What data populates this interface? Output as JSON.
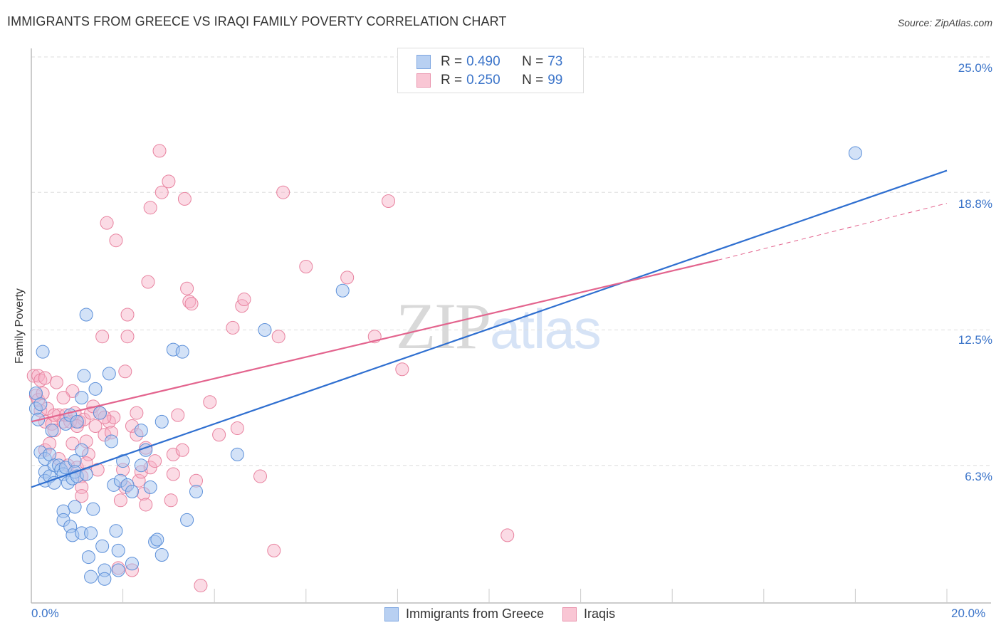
{
  "header": {
    "title": "IMMIGRANTS FROM GREECE VS IRAQI FAMILY POVERTY CORRELATION CHART",
    "source": "Source: ZipAtlas.com"
  },
  "watermark": {
    "zip": "ZIP",
    "atlas": "atlas"
  },
  "legend": {
    "rows": [
      {
        "r_label": "R =",
        "r_value": "0.490",
        "n_label": "N =",
        "n_value": "73",
        "fill": "#b8d0f2",
        "stroke": "#7ea6e0"
      },
      {
        "r_label": "R =",
        "r_value": "0.250",
        "n_label": "N =",
        "n_value": "99",
        "fill": "#f9c6d4",
        "stroke": "#e994ad"
      }
    ]
  },
  "axes": {
    "x_min_label": "0.0%",
    "x_max_label": "20.0%",
    "y_label": "Family Poverty",
    "y_ticks": [
      {
        "label": "25.0%",
        "value": 25.0
      },
      {
        "label": "18.8%",
        "value": 18.8
      },
      {
        "label": "12.5%",
        "value": 12.5
      },
      {
        "label": "6.3%",
        "value": 6.3
      }
    ]
  },
  "bottom_legend": [
    {
      "label": "Immigrants from Greece",
      "fill": "#b8d0f2",
      "stroke": "#7ea6e0"
    },
    {
      "label": "Iraqis",
      "fill": "#f9c6d4",
      "stroke": "#e994ad"
    }
  ],
  "colors": {
    "blue_line": "#2f6fd0",
    "pink_line": "#e3648e",
    "blue_fill": "rgba(168,198,240,0.5)",
    "blue_stroke": "#5b8fd9",
    "pink_fill": "rgba(246,176,198,0.45)",
    "pink_stroke": "#e8829f",
    "grid": "#dddddd",
    "axis": "#bbbbbb",
    "tick_text": "#3b74c9"
  },
  "chart_data": {
    "type": "scatter",
    "title": "IMMIGRANTS FROM GREECE VS IRAQI FAMILY POVERTY CORRELATION CHART",
    "xlabel": "",
    "ylabel": "Family Poverty",
    "xlim": [
      0,
      20
    ],
    "ylim": [
      0,
      25.5
    ],
    "x_tick_labels": [
      "0.0%",
      "20.0%"
    ],
    "y_tick_labels": [
      "6.3%",
      "12.5%",
      "18.8%",
      "25.0%"
    ],
    "grid": true,
    "legend_position": "top-center",
    "series": [
      {
        "name": "Immigrants from Greece",
        "R": 0.49,
        "N": 73,
        "trend": {
          "x0": 0,
          "y0": 5.3,
          "x1": 20,
          "y1": 19.8,
          "style": "solid"
        },
        "points": [
          [
            0.1,
            9.6
          ],
          [
            0.1,
            8.9
          ],
          [
            0.15,
            8.4
          ],
          [
            0.2,
            6.9
          ],
          [
            0.25,
            11.5
          ],
          [
            0.3,
            6.6
          ],
          [
            0.3,
            6.0
          ],
          [
            0.3,
            5.6
          ],
          [
            0.4,
            6.8
          ],
          [
            0.4,
            5.8
          ],
          [
            0.45,
            7.9
          ],
          [
            0.5,
            5.5
          ],
          [
            0.5,
            6.3
          ],
          [
            0.6,
            6.3
          ],
          [
            0.65,
            6.1
          ],
          [
            0.7,
            4.2
          ],
          [
            0.7,
            5.9
          ],
          [
            0.7,
            3.8
          ],
          [
            0.75,
            6.2
          ],
          [
            0.8,
            5.5
          ],
          [
            0.75,
            8.2
          ],
          [
            0.85,
            8.6
          ],
          [
            0.85,
            3.5
          ],
          [
            0.9,
            5.7
          ],
          [
            0.9,
            3.1
          ],
          [
            0.95,
            6.5
          ],
          [
            0.95,
            6.0
          ],
          [
            0.95,
            4.4
          ],
          [
            1.0,
            8.3
          ],
          [
            1.0,
            5.8
          ],
          [
            1.1,
            7.0
          ],
          [
            1.1,
            9.4
          ],
          [
            1.1,
            3.2
          ],
          [
            1.15,
            10.4
          ],
          [
            1.2,
            13.2
          ],
          [
            1.2,
            5.9
          ],
          [
            1.25,
            2.1
          ],
          [
            1.3,
            3.2
          ],
          [
            1.3,
            1.2
          ],
          [
            1.35,
            4.3
          ],
          [
            1.4,
            9.8
          ],
          [
            1.5,
            8.7
          ],
          [
            1.55,
            2.6
          ],
          [
            1.6,
            1.5
          ],
          [
            1.6,
            1.1
          ],
          [
            1.7,
            10.5
          ],
          [
            1.75,
            7.4
          ],
          [
            1.8,
            5.4
          ],
          [
            1.85,
            3.3
          ],
          [
            1.9,
            2.4
          ],
          [
            1.9,
            1.5
          ],
          [
            1.95,
            5.6
          ],
          [
            2.0,
            6.5
          ],
          [
            2.1,
            5.4
          ],
          [
            2.2,
            1.8
          ],
          [
            2.2,
            5.1
          ],
          [
            2.4,
            7.9
          ],
          [
            2.4,
            6.3
          ],
          [
            2.5,
            7.0
          ],
          [
            2.6,
            5.3
          ],
          [
            2.7,
            2.8
          ],
          [
            2.75,
            2.9
          ],
          [
            2.85,
            8.3
          ],
          [
            2.85,
            2.2
          ],
          [
            3.1,
            11.6
          ],
          [
            3.3,
            11.5
          ],
          [
            3.4,
            3.8
          ],
          [
            3.6,
            5.1
          ],
          [
            4.5,
            6.8
          ],
          [
            5.1,
            12.5
          ],
          [
            6.8,
            14.3
          ],
          [
            18.0,
            20.6
          ],
          [
            0.2,
            9.1
          ]
        ]
      },
      {
        "name": "Iraqis",
        "R": 0.25,
        "N": 99,
        "trend": {
          "x0": 0,
          "y0": 8.3,
          "x1": 15.0,
          "y1": 15.7,
          "x_dash_end": 20,
          "y_dash_end": 18.3,
          "style": "solid-then-dashed"
        },
        "points": [
          [
            0.05,
            10.4
          ],
          [
            0.1,
            9.5
          ],
          [
            0.15,
            10.4
          ],
          [
            0.2,
            10.2
          ],
          [
            0.2,
            8.8
          ],
          [
            0.3,
            8.3
          ],
          [
            0.3,
            7.0
          ],
          [
            0.35,
            8.9
          ],
          [
            0.4,
            7.3
          ],
          [
            0.45,
            8.2
          ],
          [
            0.5,
            7.9
          ],
          [
            0.55,
            10.1
          ],
          [
            0.6,
            8.6
          ],
          [
            0.6,
            6.6
          ],
          [
            0.7,
            8.3
          ],
          [
            0.75,
            8.6
          ],
          [
            0.8,
            6.3
          ],
          [
            0.85,
            8.3
          ],
          [
            0.9,
            9.7
          ],
          [
            0.9,
            7.3
          ],
          [
            0.95,
            8.7
          ],
          [
            1.0,
            6.2
          ],
          [
            1.05,
            8.3
          ],
          [
            1.1,
            5.8
          ],
          [
            1.1,
            5.3
          ],
          [
            1.1,
            4.9
          ],
          [
            1.15,
            8.4
          ],
          [
            1.2,
            7.4
          ],
          [
            1.25,
            6.8
          ],
          [
            1.3,
            8.7
          ],
          [
            1.35,
            9.0
          ],
          [
            1.4,
            8.1
          ],
          [
            1.45,
            6.1
          ],
          [
            1.5,
            8.7
          ],
          [
            1.55,
            12.2
          ],
          [
            1.6,
            7.7
          ],
          [
            1.65,
            17.4
          ],
          [
            1.7,
            8.3
          ],
          [
            1.75,
            7.8
          ],
          [
            1.8,
            8.5
          ],
          [
            1.85,
            16.6
          ],
          [
            1.9,
            1.6
          ],
          [
            1.95,
            4.7
          ],
          [
            2.0,
            6.1
          ],
          [
            2.05,
            5.3
          ],
          [
            2.05,
            10.6
          ],
          [
            2.1,
            12.2
          ],
          [
            2.1,
            13.2
          ],
          [
            2.2,
            1.5
          ],
          [
            2.2,
            8.1
          ],
          [
            2.3,
            7.7
          ],
          [
            2.35,
            5.6
          ],
          [
            2.4,
            6.0
          ],
          [
            2.45,
            5.0
          ],
          [
            2.5,
            7.1
          ],
          [
            2.5,
            4.5
          ],
          [
            2.55,
            14.7
          ],
          [
            2.6,
            6.2
          ],
          [
            2.6,
            18.1
          ],
          [
            2.8,
            20.7
          ],
          [
            2.85,
            18.8
          ],
          [
            3.0,
            19.3
          ],
          [
            3.05,
            4.7
          ],
          [
            3.1,
            5.9
          ],
          [
            3.1,
            6.8
          ],
          [
            3.2,
            8.6
          ],
          [
            3.3,
            7.0
          ],
          [
            3.35,
            18.5
          ],
          [
            3.4,
            14.4
          ],
          [
            3.45,
            13.8
          ],
          [
            3.5,
            13.7
          ],
          [
            3.6,
            5.6
          ],
          [
            3.7,
            0.8
          ],
          [
            3.9,
            9.2
          ],
          [
            4.1,
            7.7
          ],
          [
            4.4,
            12.6
          ],
          [
            4.5,
            8.0
          ],
          [
            4.6,
            13.6
          ],
          [
            4.65,
            13.9
          ],
          [
            5.0,
            5.8
          ],
          [
            5.3,
            2.4
          ],
          [
            5.4,
            12.2
          ],
          [
            5.5,
            18.8
          ],
          [
            6.0,
            15.4
          ],
          [
            6.9,
            14.9
          ],
          [
            7.5,
            12.2
          ],
          [
            7.8,
            18.4
          ],
          [
            8.1,
            10.7
          ],
          [
            10.4,
            3.1
          ],
          [
            0.15,
            9.3
          ],
          [
            0.3,
            10.3
          ],
          [
            0.25,
            9.6
          ],
          [
            0.5,
            8.6
          ],
          [
            0.7,
            9.4
          ],
          [
            1.0,
            8.1
          ],
          [
            1.2,
            6.4
          ],
          [
            1.6,
            8.5
          ],
          [
            2.3,
            8.7
          ],
          [
            2.7,
            6.5
          ]
        ]
      }
    ]
  }
}
